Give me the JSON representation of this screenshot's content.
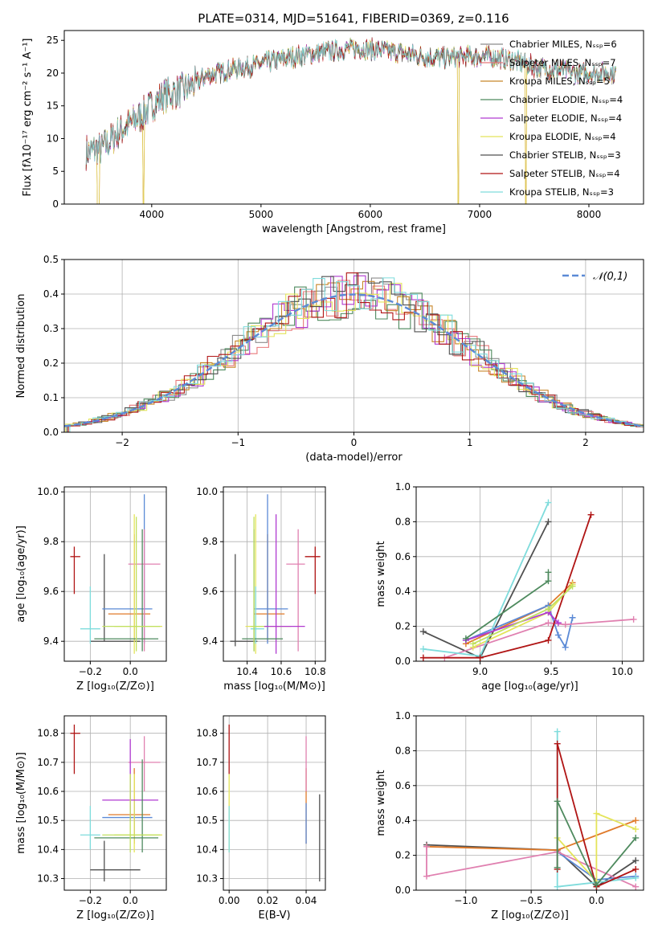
{
  "figure_title": "PLATE=0314, MJD=51641, FIBERID=0369, z=0.116",
  "model_colors": [
    "#8c8c8c",
    "#e8787a",
    "#c8862a",
    "#4e8a5e",
    "#b03ad0",
    "#e4e45a",
    "#505050",
    "#b01414",
    "#7fdcdc"
  ],
  "panel_colors": [
    "#505050",
    "#e07a2a",
    "#5b8ad6",
    "#e080b0",
    "#e4e45a",
    "#7fdcdc",
    "#b01414",
    "#b03ad0",
    "#4e8a5e",
    "#c0e060"
  ],
  "chart_data": [
    {
      "id": "spectrum",
      "type": "line",
      "title": "PLATE=0314, MJD=51641, FIBERID=0369, z=0.116",
      "xlabel": "wavelength [Angstrom, rest frame]",
      "ylabel": "Flux [fλ10⁻¹⁷ erg cm⁻² s⁻¹ A⁻¹]",
      "xlim": [
        3200,
        8500
      ],
      "ylim": [
        0,
        26.5
      ],
      "xticks": [
        4000,
        5000,
        6000,
        7000,
        8000
      ],
      "yticks": [
        0,
        5,
        10,
        15,
        20,
        25
      ],
      "legend_position": "right",
      "series_names": [
        "Chabrier MILES, Nₛₛₚ=6",
        "Salpeter MILES, Nₛₛₚ=7",
        "Kroupa MILES, Nₛₛₚ=5",
        "Chabrier ELODIE, Nₛₛₚ=4",
        "Salpeter ELODIE, Nₛₛₚ=4",
        "Kroupa ELODIE, Nₛₛₚ=4",
        "Chabrier STELIB, Nₛₛₚ=3",
        "Salpeter STELIB, Nₛₛₚ=4",
        "Kroupa STELIB, Nₛₛₚ=3"
      ],
      "continuum": [
        [
          3400,
          8.0
        ],
        [
          3550,
          8.5
        ],
        [
          3700,
          11.0
        ],
        [
          3900,
          13.5
        ],
        [
          4100,
          16.5
        ],
        [
          4300,
          17.5
        ],
        [
          4500,
          19.5
        ],
        [
          4700,
          20.5
        ],
        [
          4900,
          21.0
        ],
        [
          5100,
          21.8
        ],
        [
          5300,
          22.5
        ],
        [
          5500,
          23.0
        ],
        [
          5700,
          23.5
        ],
        [
          5900,
          23.8
        ],
        [
          6100,
          23.5
        ],
        [
          6300,
          23.0
        ],
        [
          6500,
          22.5
        ],
        [
          6700,
          22.3
        ],
        [
          6900,
          22.5
        ],
        [
          7100,
          22.6
        ],
        [
          7300,
          22.0
        ],
        [
          7500,
          21.0
        ],
        [
          7700,
          20.5
        ],
        [
          7900,
          20.0
        ],
        [
          8100,
          20.0
        ],
        [
          8250,
          20.0
        ]
      ],
      "drops": [
        [
          3500,
          3520
        ],
        [
          3920,
          3930
        ],
        [
          6800,
          6810
        ],
        [
          7420,
          7430
        ]
      ]
    },
    {
      "id": "residuals",
      "type": "histogram",
      "xlabel": "(data-model)/error",
      "ylabel": "Normed distribution",
      "xlim": [
        -2.5,
        2.5
      ],
      "ylim": [
        0,
        0.5
      ],
      "xticks": [
        -2,
        -1,
        0,
        1,
        2
      ],
      "yticks": [
        0.0,
        0.1,
        0.2,
        0.3,
        0.4,
        0.5
      ],
      "bin_width": 0.1,
      "legend_position": "top-right",
      "reference_curve": "𝒩(0,1)"
    },
    {
      "id": "age_vs_Z",
      "type": "errorbar",
      "xlabel": "Z [log₁₀(Z/Z⊙)]",
      "ylabel": "age  [log₁₀(age/yr)]",
      "xlim": [
        -0.33,
        0.18
      ],
      "ylim": [
        9.32,
        10.02
      ],
      "xticks": [
        -0.2,
        0.0
      ],
      "yticks": [
        9.4,
        9.6,
        9.8,
        10.0
      ],
      "points": [
        {
          "c": 0,
          "x": -0.13,
          "y": 9.4,
          "xlo": -0.2,
          "xhi": 0.05,
          "ylo": 9.4,
          "yhi": 9.75
        },
        {
          "c": 1,
          "x": 0.02,
          "y": 9.51,
          "xlo": -0.11,
          "xhi": 0.1,
          "ylo": 9.4,
          "yhi": 9.83
        },
        {
          "c": 2,
          "x": 0.07,
          "y": 9.53,
          "xlo": -0.14,
          "xhi": 0.11,
          "ylo": 9.39,
          "yhi": 9.99
        },
        {
          "c": 3,
          "x": 0.07,
          "y": 9.71,
          "xlo": -0.01,
          "xhi": 0.15,
          "ylo": 9.36,
          "yhi": 9.85
        },
        {
          "c": 4,
          "x": 0.02,
          "y": 9.46,
          "xlo": -0.08,
          "xhi": 0.16,
          "ylo": 9.35,
          "yhi": 9.91
        },
        {
          "c": 5,
          "x": -0.2,
          "y": 9.45,
          "xlo": -0.25,
          "xhi": -0.15,
          "ylo": 9.39,
          "yhi": 9.62
        },
        {
          "c": 6,
          "x": -0.28,
          "y": 9.74,
          "xlo": -0.3,
          "xhi": -0.25,
          "ylo": 9.59,
          "yhi": 9.78
        },
        {
          "c": 8,
          "x": 0.06,
          "y": 9.41,
          "xlo": -0.18,
          "xhi": 0.14,
          "ylo": 9.36,
          "yhi": 9.85
        },
        {
          "c": 9,
          "x": 0.03,
          "y": 9.46,
          "xlo": -0.14,
          "xhi": 0.15,
          "ylo": 9.36,
          "yhi": 9.9
        }
      ]
    },
    {
      "id": "age_vs_mass",
      "type": "errorbar",
      "xlabel": "mass [log₁₀(M/M⊙)]",
      "ylabel": "",
      "xlim": [
        10.26,
        10.86
      ],
      "ylim": [
        9.32,
        10.02
      ],
      "xticks": [
        10.4,
        10.6,
        10.8
      ],
      "yticks": [
        9.4,
        9.6,
        9.8,
        10.0
      ],
      "points": [
        {
          "c": 0,
          "x": 10.33,
          "y": 9.4,
          "xlo": 10.3,
          "xhi": 10.46,
          "ylo": 9.38,
          "yhi": 9.75
        },
        {
          "c": 1,
          "x": 10.52,
          "y": 9.51,
          "xlo": 10.44,
          "xhi": 10.62,
          "ylo": 9.4,
          "yhi": 9.83
        },
        {
          "c": 2,
          "x": 10.52,
          "y": 9.53,
          "xlo": 10.44,
          "xhi": 10.64,
          "ylo": 9.39,
          "yhi": 9.99
        },
        {
          "c": 3,
          "x": 10.7,
          "y": 9.71,
          "xlo": 10.63,
          "xhi": 10.74,
          "ylo": 9.36,
          "yhi": 9.85
        },
        {
          "c": 4,
          "x": 10.45,
          "y": 9.46,
          "xlo": 10.39,
          "xhi": 10.66,
          "ylo": 9.35,
          "yhi": 9.91
        },
        {
          "c": 5,
          "x": 10.45,
          "y": 9.45,
          "xlo": 10.42,
          "xhi": 10.5,
          "ylo": 9.39,
          "yhi": 9.62
        },
        {
          "c": 6,
          "x": 10.8,
          "y": 9.74,
          "xlo": 10.74,
          "xhi": 10.83,
          "ylo": 9.59,
          "yhi": 9.78
        },
        {
          "c": 7,
          "x": 10.57,
          "y": 9.46,
          "xlo": 10.5,
          "xhi": 10.74,
          "ylo": 9.35,
          "yhi": 9.91
        },
        {
          "c": 8,
          "x": 10.44,
          "y": 9.41,
          "xlo": 10.37,
          "xhi": 10.61,
          "ylo": 9.36,
          "yhi": 9.85
        },
        {
          "c": 9,
          "x": 10.44,
          "y": 9.46,
          "xlo": 10.42,
          "xhi": 10.5,
          "ylo": 9.36,
          "yhi": 9.9
        }
      ]
    },
    {
      "id": "weight_vs_age",
      "type": "line",
      "xlabel": "age  [log₁₀(age/yr)]",
      "ylabel": "mass weight",
      "xlim": [
        8.55,
        10.15
      ],
      "ylim": [
        0,
        1
      ],
      "xticks": [
        9.0,
        9.5,
        10.0
      ],
      "yticks": [
        0.0,
        0.2,
        0.4,
        0.6,
        0.8,
        1.0
      ],
      "series": [
        {
          "c": 0,
          "x": [
            8.6,
            9.0,
            9.48
          ],
          "y": [
            0.17,
            0.02,
            0.8
          ]
        },
        {
          "c": 1,
          "x": [
            8.9,
            9.48,
            9.65
          ],
          "y": [
            0.1,
            0.32,
            0.45
          ]
        },
        {
          "c": 2,
          "x": [
            8.9,
            9.48,
            9.55,
            9.6,
            9.65
          ],
          "y": [
            0.12,
            0.32,
            0.15,
            0.08,
            0.25
          ]
        },
        {
          "c": 3,
          "x": [
            8.75,
            9.48,
            9.6,
            10.08
          ],
          "y": [
            0.02,
            0.22,
            0.21,
            0.24
          ]
        },
        {
          "c": 4,
          "x": [
            8.95,
            9.48,
            9.65
          ],
          "y": [
            0.08,
            0.28,
            0.44
          ]
        },
        {
          "c": 5,
          "x": [
            8.6,
            9.0,
            9.48
          ],
          "y": [
            0.07,
            0.03,
            0.91
          ]
        },
        {
          "c": 6,
          "x": [
            8.6,
            9.0,
            9.48,
            9.78
          ],
          "y": [
            0.02,
            0.02,
            0.12,
            0.84
          ]
        },
        {
          "c": 7,
          "x": [
            8.9,
            9.48,
            9.55
          ],
          "y": [
            0.12,
            0.28,
            0.22
          ]
        },
        {
          "c": 8,
          "x": [
            8.9,
            9.48,
            9.48
          ],
          "y": [
            0.13,
            0.46,
            0.51
          ]
        },
        {
          "c": 9,
          "x": [
            8.95,
            9.48,
            9.65
          ],
          "y": [
            0.1,
            0.3,
            0.43
          ]
        }
      ]
    },
    {
      "id": "mass_vs_Z",
      "type": "errorbar",
      "xlabel": "Z [log₁₀(Z/Z⊙)]",
      "ylabel": "mass [log₁₀(M/M⊙)]",
      "xlim": [
        -0.33,
        0.18
      ],
      "ylim": [
        10.26,
        10.86
      ],
      "xticks": [
        -0.2,
        0.0
      ],
      "yticks": [
        10.3,
        10.4,
        10.5,
        10.6,
        10.7,
        10.8
      ],
      "points": [
        {
          "c": 0,
          "x": -0.13,
          "y": 10.33,
          "xlo": -0.2,
          "xhi": 0.05,
          "ylo": 10.29,
          "yhi": 10.43
        },
        {
          "c": 1,
          "x": 0.02,
          "y": 10.52,
          "xlo": -0.11,
          "xhi": 0.1,
          "ylo": 10.42,
          "yhi": 10.68
        },
        {
          "c": 2,
          "x": 0.02,
          "y": 10.51,
          "xlo": -0.14,
          "xhi": 0.11,
          "ylo": 10.43,
          "yhi": 10.57
        },
        {
          "c": 3,
          "x": 0.07,
          "y": 10.7,
          "xlo": -0.01,
          "xhi": 0.15,
          "ylo": 10.6,
          "yhi": 10.79
        },
        {
          "c": 4,
          "x": 0.02,
          "y": 10.45,
          "xlo": -0.08,
          "xhi": 0.16,
          "ylo": 10.39,
          "yhi": 10.66
        },
        {
          "c": 5,
          "x": -0.2,
          "y": 10.45,
          "xlo": -0.25,
          "xhi": -0.15,
          "ylo": 10.4,
          "yhi": 10.55
        },
        {
          "c": 6,
          "x": -0.28,
          "y": 10.8,
          "xlo": -0.3,
          "xhi": -0.25,
          "ylo": 10.66,
          "yhi": 10.83
        },
        {
          "c": 7,
          "x": 0.0,
          "y": 10.57,
          "xlo": -0.14,
          "xhi": 0.14,
          "ylo": 10.5,
          "yhi": 10.78
        },
        {
          "c": 8,
          "x": 0.06,
          "y": 10.44,
          "xlo": -0.18,
          "xhi": 0.14,
          "ylo": 10.39,
          "yhi": 10.71
        },
        {
          "c": 9,
          "x": 0.0,
          "y": 10.45,
          "xlo": -0.14,
          "xhi": 0.15,
          "ylo": 10.39,
          "yhi": 10.66
        }
      ]
    },
    {
      "id": "mass_vs_EBV",
      "type": "errorbar",
      "xlabel": "E(B-V)",
      "ylabel": "",
      "xlim": [
        -0.003,
        0.05
      ],
      "ylim": [
        10.26,
        10.86
      ],
      "xticks": [
        0.0,
        0.02,
        0.04
      ],
      "yticks": [
        10.3,
        10.4,
        10.5,
        10.6,
        10.7,
        10.8
      ],
      "points": [
        {
          "c": 0,
          "x": 0.047,
          "y": 10.3,
          "ylo": 10.29,
          "yhi": 10.59
        },
        {
          "c": 1,
          "x": 0.04,
          "y": 10.52,
          "ylo": 10.42,
          "yhi": 10.68
        },
        {
          "c": 2,
          "x": 0.04,
          "y": 10.51,
          "ylo": 10.42,
          "yhi": 10.56
        },
        {
          "c": 3,
          "x": 0.04,
          "y": 10.7,
          "ylo": 10.6,
          "yhi": 10.79
        },
        {
          "c": 4,
          "x": 0.0,
          "y": 10.45,
          "ylo": 10.39,
          "yhi": 10.66
        },
        {
          "c": 5,
          "x": 0.0,
          "y": 10.45,
          "ylo": 10.39,
          "yhi": 10.55
        },
        {
          "c": 6,
          "x": 0.0,
          "y": 10.8,
          "ylo": 10.66,
          "yhi": 10.83
        }
      ]
    },
    {
      "id": "weight_vs_Z",
      "type": "line",
      "xlabel": "Z [log₁₀(Z/Z⊙)]",
      "ylabel": "mass weight",
      "xlim": [
        -1.38,
        0.36
      ],
      "ylim": [
        0,
        1
      ],
      "xticks": [
        -1.0,
        -0.5,
        0.0
      ],
      "yticks": [
        0.0,
        0.2,
        0.4,
        0.6,
        0.8,
        1.0
      ],
      "series": [
        {
          "c": 0,
          "x": [
            -1.3,
            -0.3,
            0.0,
            0.3
          ],
          "y": [
            0.26,
            0.23,
            0.02,
            0.17
          ]
        },
        {
          "c": 1,
          "x": [
            -1.3,
            -0.3,
            0.3
          ],
          "y": [
            0.25,
            0.23,
            0.4
          ]
        },
        {
          "c": 2,
          "x": [
            -0.3,
            0.0,
            0.3
          ],
          "y": [
            0.22,
            0.06,
            0.08
          ]
        },
        {
          "c": 3,
          "x": [
            -1.3,
            -1.3,
            -0.3,
            0.3
          ],
          "y": [
            0.25,
            0.08,
            0.22,
            0.02
          ]
        },
        {
          "c": 4,
          "x": [
            -0.3,
            0.0,
            0.0,
            0.3
          ],
          "y": [
            0.3,
            0.05,
            0.44,
            0.35
          ]
        },
        {
          "c": 5,
          "x": [
            -0.3,
            -0.3,
            0.3
          ],
          "y": [
            0.91,
            0.02,
            0.07
          ]
        },
        {
          "c": 6,
          "x": [
            -0.3,
            -0.3,
            0.0,
            0.3
          ],
          "y": [
            0.12,
            0.84,
            0.02,
            0.12
          ]
        },
        {
          "c": 8,
          "x": [
            -0.3,
            -0.3,
            0.0,
            0.3
          ],
          "y": [
            0.13,
            0.51,
            0.03,
            0.3
          ]
        }
      ]
    }
  ]
}
